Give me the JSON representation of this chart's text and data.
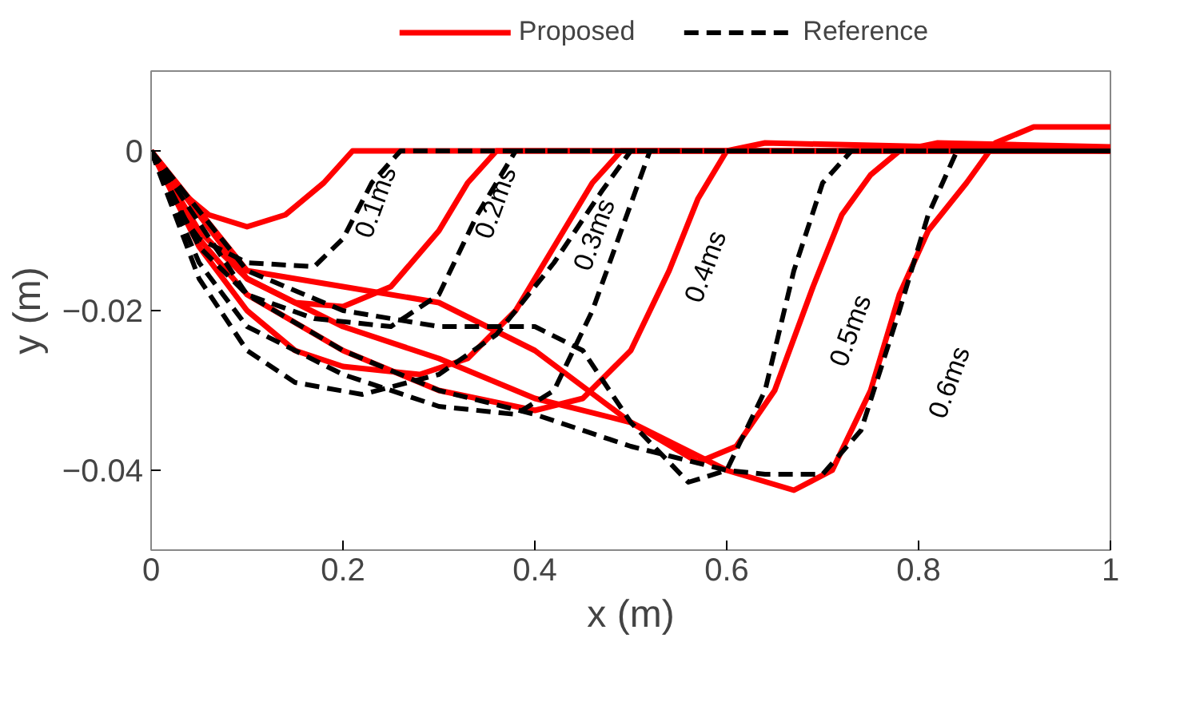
{
  "chart_data": {
    "type": "line",
    "xlabel": "x (m)",
    "ylabel": "y (m)",
    "xlim": [
      0,
      1
    ],
    "ylim": [
      -0.05,
      0.01
    ],
    "xticks": [
      0,
      0.2,
      0.4,
      0.6,
      0.8,
      1
    ],
    "yticks": [
      -0.04,
      -0.02,
      0
    ],
    "grid": false,
    "legend": "top",
    "marker": "none",
    "series": [
      {
        "name": "Proposed",
        "color": "#ff0000",
        "line_style": "solid",
        "x": [
          0,
          0.03,
          0.06,
          0.1,
          0.14,
          0.18,
          0.21,
          0.3,
          0.5,
          1
        ],
        "values": [
          0,
          -0.005,
          -0.008,
          -0.0095,
          -0.008,
          -0.004,
          0,
          0,
          0,
          0
        ]
      },
      {
        "color": "#ff0000",
        "line_style": "solid",
        "x": [
          0,
          0.05,
          0.1,
          0.15,
          0.2,
          0.25,
          0.3,
          0.33,
          0.36,
          1
        ],
        "values": [
          0,
          -0.01,
          -0.016,
          -0.019,
          -0.0195,
          -0.017,
          -0.01,
          -0.004,
          0,
          0
        ]
      },
      {
        "color": "#ff0000",
        "line_style": "solid",
        "x": [
          0,
          0.05,
          0.1,
          0.15,
          0.2,
          0.28,
          0.33,
          0.38,
          0.42,
          0.46,
          0.49,
          1
        ],
        "values": [
          0,
          -0.012,
          -0.02,
          -0.025,
          -0.027,
          -0.028,
          -0.026,
          -0.02,
          -0.012,
          -0.004,
          0,
          0
        ]
      },
      {
        "color": "#ff0000",
        "line_style": "solid",
        "x": [
          0,
          0.05,
          0.1,
          0.2,
          0.3,
          0.4,
          0.45,
          0.5,
          0.54,
          0.57,
          0.6,
          0.64,
          1
        ],
        "values": [
          0,
          -0.011,
          -0.018,
          -0.025,
          -0.03,
          -0.0325,
          -0.031,
          -0.025,
          -0.015,
          -0.006,
          0,
          0.001,
          0
        ]
      },
      {
        "color": "#ff0000",
        "line_style": "solid",
        "x": [
          0,
          0.1,
          0.2,
          0.3,
          0.4,
          0.5,
          0.57,
          0.61,
          0.65,
          0.69,
          0.72,
          0.75,
          0.78,
          0.82,
          1
        ],
        "values": [
          0,
          -0.015,
          -0.017,
          -0.019,
          -0.025,
          -0.034,
          -0.039,
          -0.037,
          -0.03,
          -0.017,
          -0.008,
          -0.003,
          0,
          0.001,
          0.0005
        ]
      },
      {
        "color": "#ff0000",
        "line_style": "solid",
        "x": [
          0,
          0.1,
          0.2,
          0.3,
          0.4,
          0.5,
          0.6,
          0.67,
          0.71,
          0.75,
          0.78,
          0.81,
          0.85,
          0.88,
          0.92,
          1
        ],
        "values": [
          0,
          -0.016,
          -0.022,
          -0.026,
          -0.031,
          -0.034,
          -0.04,
          -0.0425,
          -0.04,
          -0.03,
          -0.018,
          -0.01,
          -0.004,
          0.001,
          0.003,
          0.003
        ]
      },
      {
        "name": "Reference",
        "color": "#000000",
        "line_style": "dashed",
        "x": [
          0,
          0.02,
          0.05,
          0.1,
          0.17,
          0.2,
          0.23,
          0.26,
          1
        ],
        "values": [
          0,
          -0.006,
          -0.011,
          -0.014,
          -0.0145,
          -0.011,
          -0.004,
          0,
          0
        ]
      },
      {
        "color": "#000000",
        "line_style": "dashed",
        "x": [
          0,
          0.05,
          0.1,
          0.17,
          0.25,
          0.3,
          0.34,
          0.38,
          1
        ],
        "values": [
          0,
          -0.012,
          -0.018,
          -0.021,
          -0.022,
          -0.018,
          -0.008,
          0,
          0
        ]
      },
      {
        "color": "#000000",
        "line_style": "dashed",
        "x": [
          0,
          0.05,
          0.1,
          0.15,
          0.22,
          0.3,
          0.36,
          0.42,
          0.47,
          0.5,
          1
        ],
        "values": [
          0,
          -0.016,
          -0.025,
          -0.029,
          -0.0305,
          -0.028,
          -0.023,
          -0.014,
          -0.005,
          0,
          0
        ]
      },
      {
        "color": "#000000",
        "line_style": "dashed",
        "x": [
          0,
          0.05,
          0.1,
          0.2,
          0.3,
          0.38,
          0.42,
          0.46,
          0.49,
          0.52,
          1
        ],
        "values": [
          0,
          -0.014,
          -0.022,
          -0.028,
          -0.032,
          -0.033,
          -0.03,
          -0.02,
          -0.01,
          0,
          0
        ]
      },
      {
        "color": "#000000",
        "line_style": "dashed",
        "x": [
          0,
          0.1,
          0.2,
          0.3,
          0.4,
          0.45,
          0.5,
          0.56,
          0.6,
          0.64,
          0.67,
          0.7,
          0.73,
          1
        ],
        "values": [
          0,
          -0.015,
          -0.02,
          -0.022,
          -0.022,
          -0.025,
          -0.034,
          -0.0415,
          -0.04,
          -0.03,
          -0.015,
          -0.004,
          0,
          0
        ]
      },
      {
        "color": "#000000",
        "line_style": "dashed",
        "x": [
          0,
          0.1,
          0.2,
          0.3,
          0.4,
          0.5,
          0.6,
          0.64,
          0.7,
          0.74,
          0.78,
          0.81,
          0.84,
          1
        ],
        "values": [
          0,
          -0.018,
          -0.025,
          -0.03,
          -0.033,
          -0.037,
          -0.04,
          -0.0405,
          -0.0405,
          -0.035,
          -0.02,
          -0.008,
          0,
          0
        ]
      }
    ],
    "annotations": [
      "0.1ms",
      "0.2ms",
      "0.3ms",
      "0.4ms",
      "0.5ms",
      "0.6ms"
    ]
  }
}
